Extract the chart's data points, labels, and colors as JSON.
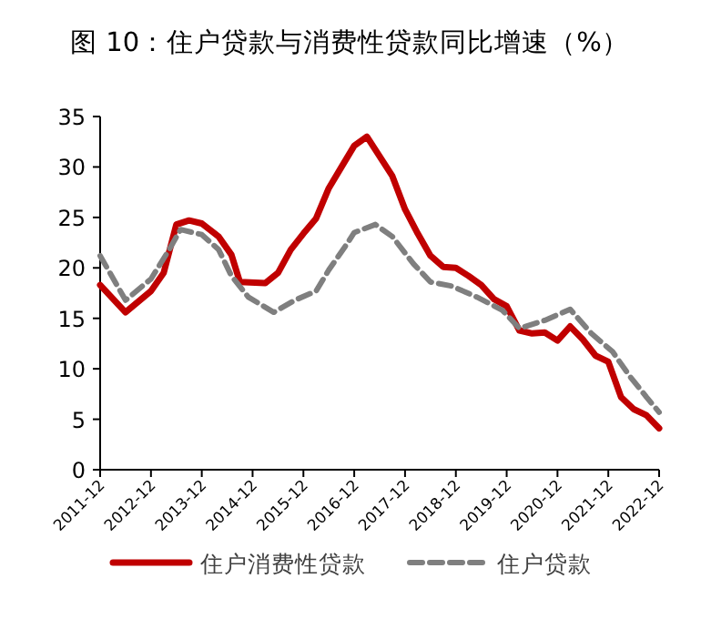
{
  "chart_data": {
    "type": "line",
    "title": "图 10：住户贷款与消费性贷款同比增速（%）",
    "xlim": [
      "2011-12",
      "2022-12"
    ],
    "xticks": [
      "2011-12",
      "2012-12",
      "2013-12",
      "2014-12",
      "2015-12",
      "2016-12",
      "2017-12",
      "2018-12",
      "2019-12",
      "2020-12",
      "2021-12",
      "2022-12"
    ],
    "ylim": [
      0,
      35
    ],
    "yticks": [
      0,
      5,
      10,
      15,
      20,
      25,
      30,
      35
    ],
    "grid": false,
    "legend": "bottom",
    "marker": "none",
    "series": [
      {
        "name": "住户消费性贷款",
        "color": "#c00000",
        "line_style": "solid",
        "x": [
          "2011-12",
          "2012-06",
          "2012-12",
          "2013-03",
          "2013-06",
          "2013-09",
          "2013-12",
          "2014-04",
          "2014-07",
          "2014-09",
          "2015-03",
          "2015-06",
          "2015-09",
          "2015-12",
          "2016-03",
          "2016-06",
          "2016-09",
          "2016-12",
          "2017-03",
          "2017-09",
          "2017-12",
          "2018-03",
          "2018-06",
          "2018-09",
          "2018-12",
          "2019-03",
          "2019-06",
          "2019-09",
          "2019-12",
          "2020-03",
          "2020-06",
          "2020-09",
          "2020-12",
          "2021-03",
          "2021-06",
          "2021-09",
          "2021-12",
          "2022-03",
          "2022-06",
          "2022-09",
          "2022-12"
        ],
        "values": [
          18.3,
          15.6,
          17.7,
          19.5,
          24.3,
          24.7,
          24.4,
          23.1,
          21.3,
          18.6,
          18.5,
          19.5,
          21.8,
          23.4,
          24.9,
          27.9,
          30,
          32.1,
          33.0,
          29.1,
          25.8,
          23.4,
          21.2,
          20.1,
          20.0,
          19.2,
          18.3,
          16.9,
          16.2,
          13.8,
          13.5,
          13.6,
          12.8,
          14.2,
          12.9,
          11.3,
          10.7,
          7.2,
          6.0,
          5.4,
          4.1
        ]
      },
      {
        "name": "住户贷款",
        "color": "#7f7f7f",
        "line_style": "dashed",
        "x": [
          "2011-12",
          "2012-06",
          "2012-12",
          "2013-04",
          "2013-07",
          "2013-12",
          "2014-04",
          "2014-07",
          "2014-11",
          "2015-05",
          "2015-10",
          "2016-03",
          "2016-06",
          "2016-10",
          "2016-12",
          "2017-05",
          "2017-09",
          "2018-02",
          "2018-06",
          "2018-11",
          "2019-05",
          "2019-11",
          "2020-03",
          "2020-09",
          "2021-03",
          "2021-08",
          "2022-01",
          "2022-05",
          "2022-09",
          "2022-12"
        ],
        "values": [
          21.2,
          16.8,
          18.9,
          21.6,
          23.8,
          23.3,
          21.8,
          19.2,
          17.1,
          15.6,
          16.8,
          17.7,
          19.8,
          22.2,
          23.5,
          24.3,
          23.1,
          20.4,
          18.6,
          18.2,
          17.1,
          15.8,
          14.0,
          14.8,
          15.9,
          13.5,
          11.7,
          9.3,
          7.2,
          5.7
        ]
      }
    ]
  }
}
